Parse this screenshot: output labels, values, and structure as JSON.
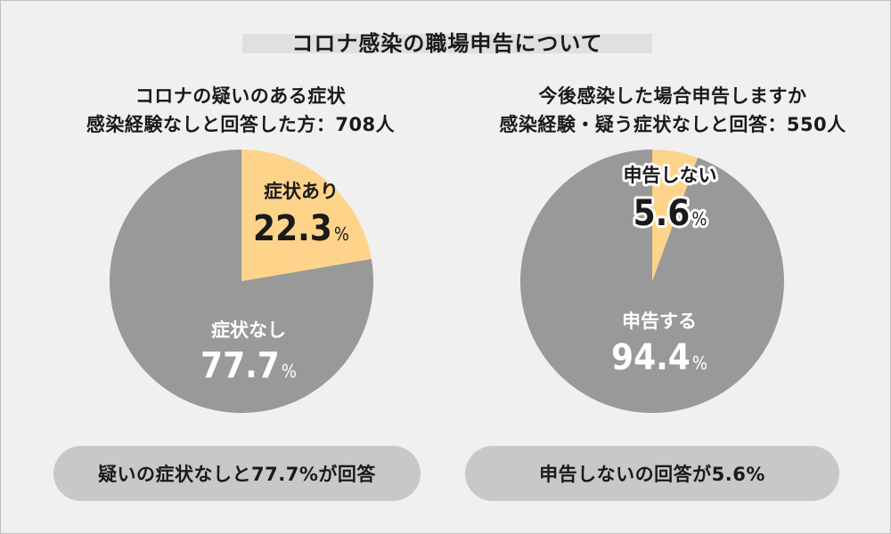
{
  "page": {
    "title": "コロナ感染の職場申告について"
  },
  "chart_data": [
    {
      "type": "pie",
      "title": "コロナの疑いのある症状",
      "subtitle": "感染経験なしと回答した方：708人",
      "slices": [
        {
          "label": "症状あり",
          "value": 22.3,
          "value_text": "22.3",
          "unit": "%",
          "color": "#fdd48a",
          "label_color": "#1a1a1a"
        },
        {
          "label": "症状なし",
          "value": 77.7,
          "value_text": "77.7",
          "unit": "%",
          "color": "#999999",
          "label_color": "#ffffff"
        }
      ],
      "summary": "疑いの症状なしと77.7%が回答"
    },
    {
      "type": "pie",
      "title": "今後感染した場合申告しますか",
      "subtitle": "感染経験・疑う症状なしと回答：550人",
      "slices": [
        {
          "label": "申告しない",
          "value": 5.6,
          "value_text": "5.6",
          "unit": "%",
          "color": "#fdd48a",
          "label_color": "#1a1a1a"
        },
        {
          "label": "申告する",
          "value": 94.4,
          "value_text": "94.4",
          "unit": "%",
          "color": "#999999",
          "label_color": "#ffffff"
        }
      ],
      "summary": "申告しないの回答が5.6%"
    }
  ],
  "colors": {
    "background": "#f0f0f0",
    "accent": "#fdd48a",
    "gray_slice": "#999999",
    "pill": "#c8c8c8",
    "title_band": "#e0e0e0"
  }
}
